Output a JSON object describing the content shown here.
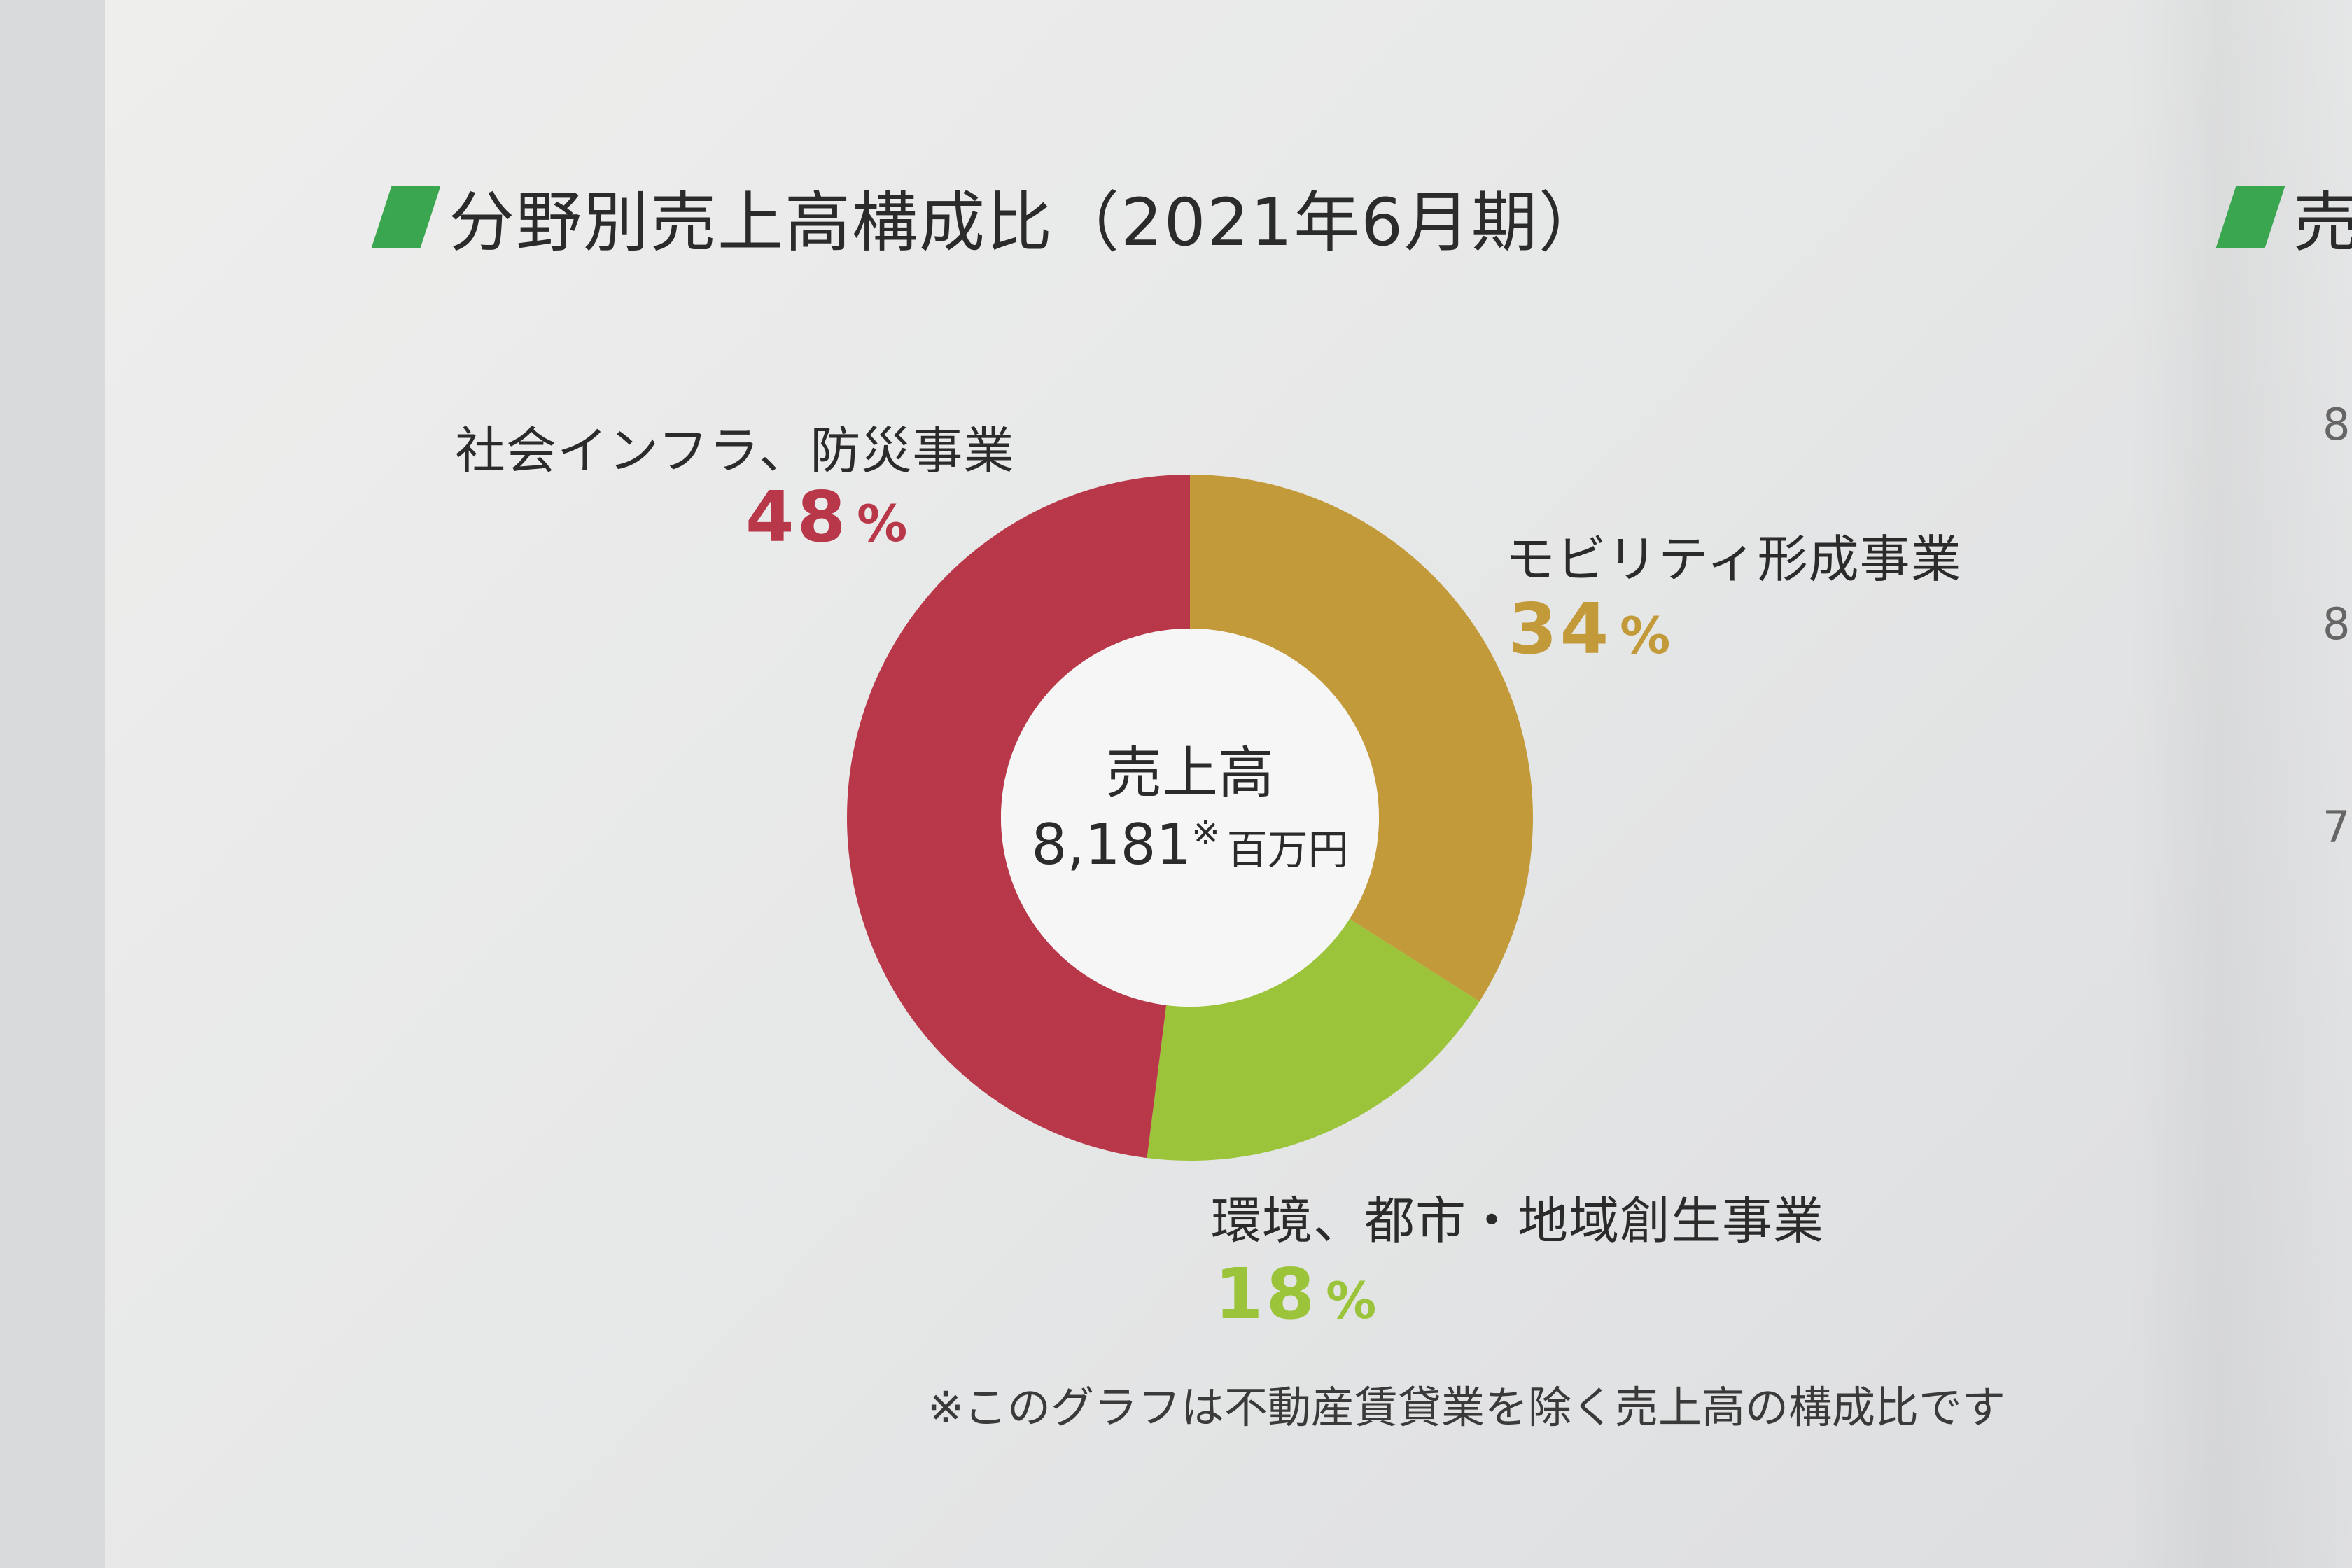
{
  "heading": "分野別売上高構成比（2021年6月期）",
  "right_heading": "売",
  "colors": {
    "heading_mark": "#3aa750",
    "infra": "#b8384a",
    "mobility": "#c39a3a",
    "environment": "#9cc43a"
  },
  "chart_data": {
    "type": "pie",
    "donut": true,
    "slices": [
      {
        "label": "モビリティ形成事業",
        "value": 34,
        "value_text": "34",
        "color": "#c39a3a"
      },
      {
        "label": "環境、都市・地域創生事業",
        "value": 18,
        "value_text": "18",
        "color": "#9cc43a"
      },
      {
        "label": "社会インフラ、防災事業",
        "value": 48,
        "value_text": "48",
        "color": "#b8384a"
      }
    ],
    "percent_sign": "%",
    "center": {
      "label": "売上高",
      "value": "8,181",
      "note_mark": "※",
      "unit": "百万円"
    }
  },
  "footnote": "※このグラフは不動産賃貸業を除く売上高の構成比です",
  "edge_ticks": [
    "8",
    "8",
    "7"
  ]
}
